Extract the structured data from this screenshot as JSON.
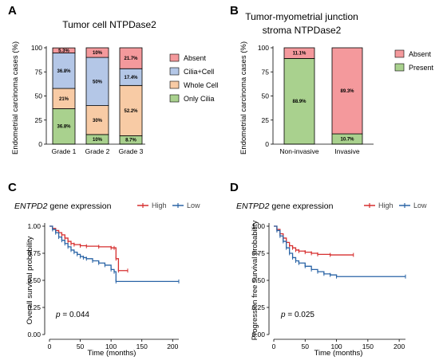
{
  "chart_data": [
    {
      "panel": "A",
      "type": "bar",
      "stacked": true,
      "title": "Tumor cell NTPDase2",
      "ylabel": "Endometrial carcinoma cases (%)",
      "categories": [
        "Grade 1",
        "Grade 2",
        "Grade 3"
      ],
      "ylim": [
        0,
        100
      ],
      "yticks": [
        "0",
        "25",
        "50",
        "75",
        "100"
      ],
      "series": [
        {
          "name": "Only Cilia",
          "color": "#a9d18e",
          "values": [
            36.8,
            10,
            8.7
          ],
          "labels": [
            "36.8%",
            "10%",
            "8.7%"
          ]
        },
        {
          "name": "Whole Cell",
          "color": "#f8cba5",
          "values": [
            21,
            30,
            52.2
          ],
          "labels": [
            "21%",
            "30%",
            "52.2%"
          ]
        },
        {
          "name": "Cilia+Cell",
          "color": "#b4c7e7",
          "values": [
            36.8,
            50,
            17.4
          ],
          "labels": [
            "36.8%",
            "50%",
            "17.4%"
          ]
        },
        {
          "name": "Absent",
          "color": "#f4999c",
          "values": [
            5.3,
            10,
            21.7
          ],
          "labels": [
            "5.3%",
            "10%",
            "21.7%"
          ]
        }
      ],
      "legend_order": [
        "Absent",
        "Cilia+Cell",
        "Whole Cell",
        "Only Cilia"
      ],
      "legend": "right"
    },
    {
      "panel": "B",
      "type": "bar",
      "stacked": true,
      "title": "Tumor-myometrial junction",
      "subtitle": "stroma  NTPDase2",
      "ylabel": "Endometrial carcinoma cases (%)",
      "categories": [
        "Non-invasive",
        "Invasive"
      ],
      "ylim": [
        0,
        100
      ],
      "yticks": [
        "0",
        "25",
        "50",
        "75",
        "100"
      ],
      "series": [
        {
          "name": "Present",
          "color": "#a9d18e",
          "values": [
            88.9,
            10.7
          ],
          "labels": [
            "88.9%",
            "10.7%"
          ]
        },
        {
          "name": "Absent",
          "color": "#f4999c",
          "values": [
            11.1,
            89.3
          ],
          "labels": [
            "11.1%",
            "89.3%"
          ]
        }
      ],
      "legend_order": [
        "Absent",
        "Present"
      ],
      "legend": "right"
    },
    {
      "panel": "C",
      "type": "line",
      "title_gene": "ENTPD2",
      "title_rest": " gene expression",
      "xlabel": "Time (months)",
      "ylabel": "Overall survival probability",
      "xlim": [
        0,
        210
      ],
      "ylim": [
        0,
        1
      ],
      "xticks": [
        "0",
        "50",
        "100",
        "150",
        "200"
      ],
      "yticks": [
        "0.00",
        "0.25",
        "0.50",
        "0.75",
        "1.00"
      ],
      "pvalue": "p = 0.044",
      "series": [
        {
          "name": "High",
          "color": "#d62f2f",
          "step": [
            [
              0,
              1.0
            ],
            [
              5,
              0.98
            ],
            [
              10,
              0.96
            ],
            [
              15,
              0.94
            ],
            [
              20,
              0.92
            ],
            [
              25,
              0.89
            ],
            [
              30,
              0.86
            ],
            [
              35,
              0.84
            ],
            [
              40,
              0.83
            ],
            [
              50,
              0.82
            ],
            [
              60,
              0.815
            ],
            [
              80,
              0.81
            ],
            [
              100,
              0.8
            ],
            [
              105,
              0.8
            ],
            [
              108,
              0.7
            ],
            [
              112,
              0.59
            ],
            [
              127,
              0.59
            ]
          ]
        },
        {
          "name": "Low",
          "color": "#2a64a6",
          "step": [
            [
              0,
              1.0
            ],
            [
              5,
              0.97
            ],
            [
              10,
              0.94
            ],
            [
              15,
              0.9
            ],
            [
              20,
              0.87
            ],
            [
              25,
              0.84
            ],
            [
              30,
              0.81
            ],
            [
              35,
              0.78
            ],
            [
              40,
              0.76
            ],
            [
              45,
              0.74
            ],
            [
              50,
              0.72
            ],
            [
              55,
              0.71
            ],
            [
              60,
              0.7
            ],
            [
              70,
              0.68
            ],
            [
              80,
              0.66
            ],
            [
              90,
              0.64
            ],
            [
              100,
              0.6
            ],
            [
              105,
              0.58
            ],
            [
              108,
              0.49
            ],
            [
              210,
              0.49
            ]
          ]
        }
      ]
    },
    {
      "panel": "D",
      "type": "line",
      "title_gene": "ENTPD2",
      "title_rest": " gene expression",
      "xlabel": "Time (months)",
      "ylabel": "Progression free survival probability",
      "xlim": [
        0,
        210
      ],
      "ylim": [
        0,
        1
      ],
      "xticks": [
        "0",
        "50",
        "100",
        "150",
        "200"
      ],
      "yticks": [
        "0.00",
        "0.25",
        "0.50",
        "0.75",
        "1.00"
      ],
      "pvalue": "p = 0.025",
      "series": [
        {
          "name": "High",
          "color": "#d62f2f",
          "step": [
            [
              0,
              1.0
            ],
            [
              5,
              0.97
            ],
            [
              10,
              0.93
            ],
            [
              15,
              0.89
            ],
            [
              20,
              0.85
            ],
            [
              25,
              0.82
            ],
            [
              30,
              0.8
            ],
            [
              35,
              0.78
            ],
            [
              40,
              0.77
            ],
            [
              50,
              0.76
            ],
            [
              60,
              0.75
            ],
            [
              70,
              0.74
            ],
            [
              90,
              0.735
            ],
            [
              127,
              0.735
            ]
          ]
        },
        {
          "name": "Low",
          "color": "#2a64a6",
          "step": [
            [
              0,
              1.0
            ],
            [
              5,
              0.96
            ],
            [
              10,
              0.91
            ],
            [
              15,
              0.86
            ],
            [
              20,
              0.8
            ],
            [
              25,
              0.75
            ],
            [
              30,
              0.71
            ],
            [
              35,
              0.68
            ],
            [
              40,
              0.66
            ],
            [
              50,
              0.63
            ],
            [
              60,
              0.6
            ],
            [
              70,
              0.58
            ],
            [
              80,
              0.56
            ],
            [
              90,
              0.55
            ],
            [
              100,
              0.535
            ],
            [
              210,
              0.535
            ]
          ]
        }
      ]
    }
  ],
  "panel_letters": [
    "A",
    "B",
    "C",
    "D"
  ],
  "km_legend": {
    "high": "High",
    "low": "Low"
  }
}
